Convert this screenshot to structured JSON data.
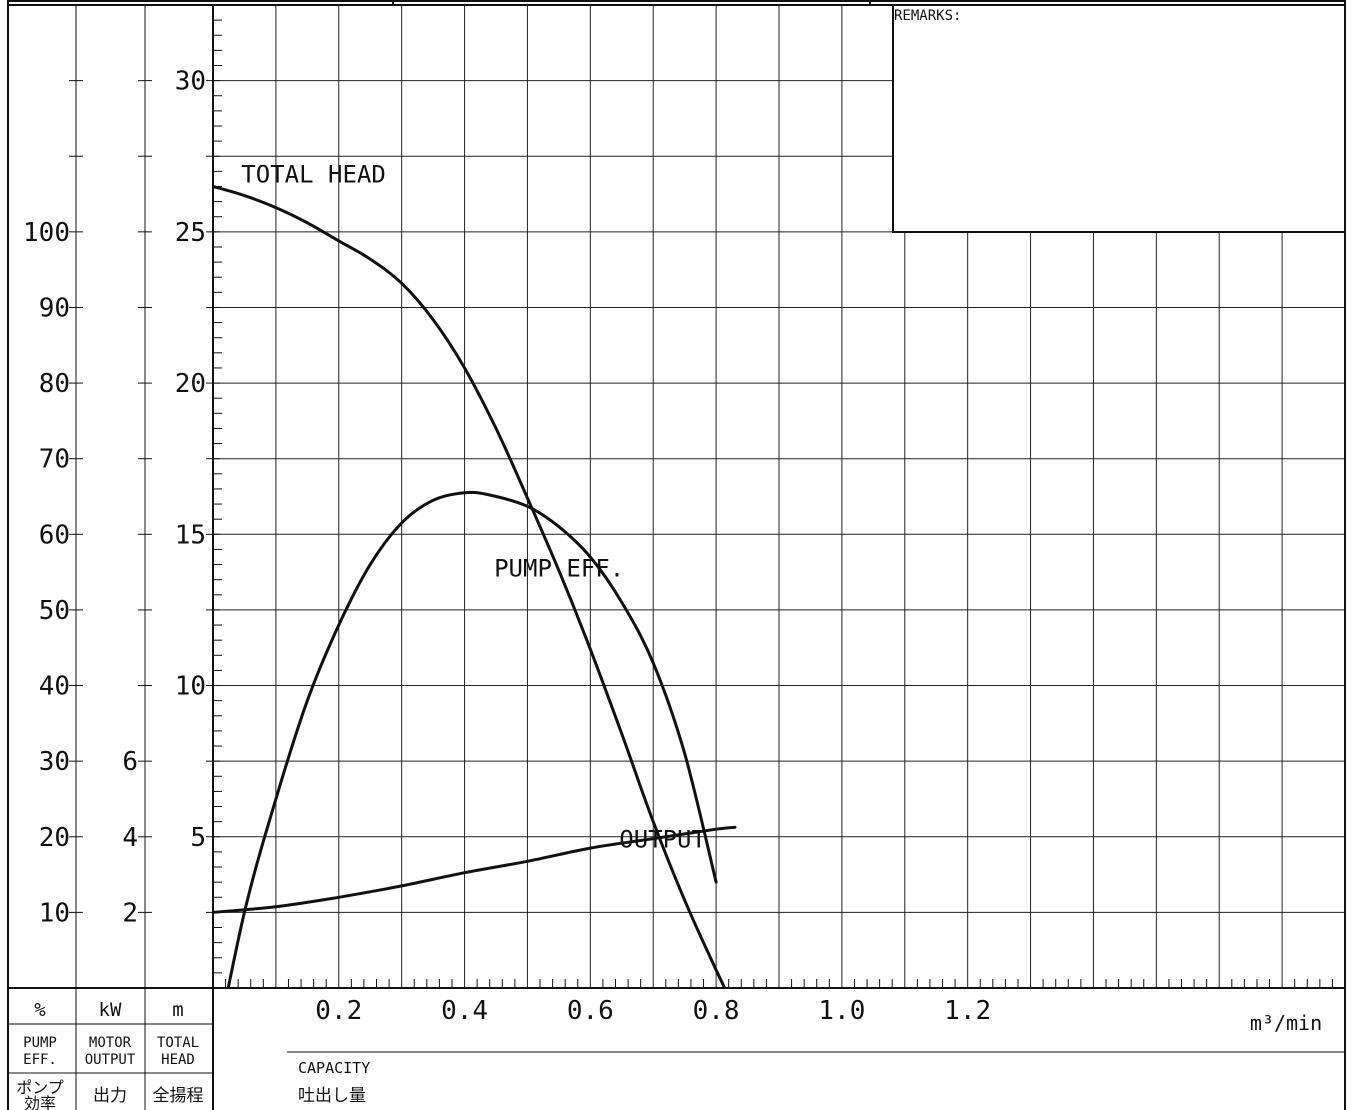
{
  "remarks_label": "REMARKS:",
  "axis_columns": [
    {
      "unit": "%",
      "name_en": [
        "PUMP",
        "EFF."
      ],
      "name_ja": [
        "ポンプ",
        "効率"
      ]
    },
    {
      "unit": "kW",
      "name_en": [
        "MOTOR",
        "OUTPUT"
      ],
      "name_ja": [
        "出力"
      ]
    },
    {
      "unit": "m",
      "name_en": [
        "TOTAL",
        "HEAD"
      ],
      "name_ja": [
        "全揚程"
      ]
    }
  ],
  "x_axis": {
    "unit": "m³/min",
    "label_en": "CAPACITY",
    "label_ja": "吐出し量"
  },
  "chart_data": {
    "type": "line",
    "x_range": [
      0,
      1.8
    ],
    "x_ticks": [
      0.2,
      0.4,
      0.6,
      0.8,
      1.0,
      1.2
    ],
    "x_tick_labels": [
      "0.2",
      "0.4",
      "0.6",
      "0.8",
      "1.0",
      "1.2"
    ],
    "axes": {
      "efficiency_pct": {
        "ticks": [
          10,
          20,
          30,
          40,
          50,
          60,
          70,
          80,
          90,
          100
        ],
        "range": [
          0,
          130
        ]
      },
      "output_kw": {
        "ticks": [
          2,
          4,
          6
        ],
        "range": [
          0,
          26
        ]
      },
      "total_head_m": {
        "ticks": [
          5,
          10,
          15,
          20,
          25,
          30
        ],
        "range": [
          0,
          32.5
        ]
      }
    },
    "grid": true,
    "series": [
      {
        "name": "TOTAL HEAD",
        "axis": "total_head_m",
        "x": [
          0,
          0.05,
          0.1,
          0.15,
          0.2,
          0.25,
          0.3,
          0.35,
          0.4,
          0.45,
          0.5,
          0.55,
          0.6,
          0.65,
          0.7,
          0.75,
          0.8,
          0.83
        ],
        "y": [
          26.5,
          26.2,
          25.8,
          25.3,
          24.7,
          24.1,
          23.3,
          22.1,
          20.5,
          18.5,
          16.2,
          13.8,
          11.2,
          8.4,
          5.5,
          2.9,
          0.6,
          -0.7
        ]
      },
      {
        "name": "PUMP EFF.",
        "axis": "efficiency_pct",
        "x": [
          0,
          0.05,
          0.1,
          0.15,
          0.2,
          0.25,
          0.3,
          0.35,
          0.4,
          0.44,
          0.5,
          0.55,
          0.6,
          0.65,
          0.7,
          0.75,
          0.8
        ],
        "y": [
          -10,
          10,
          25,
          38,
          48,
          56,
          61.5,
          64.5,
          65.5,
          65.2,
          63.7,
          61,
          57,
          51,
          43,
          31,
          14
        ]
      },
      {
        "name": "OUTPUT",
        "axis": "output_kw",
        "x": [
          0,
          0.1,
          0.2,
          0.3,
          0.4,
          0.5,
          0.6,
          0.7,
          0.8,
          0.83
        ],
        "y": [
          2,
          2.15,
          2.4,
          2.7,
          3.05,
          3.35,
          3.7,
          3.95,
          4.2,
          4.25
        ]
      }
    ]
  }
}
